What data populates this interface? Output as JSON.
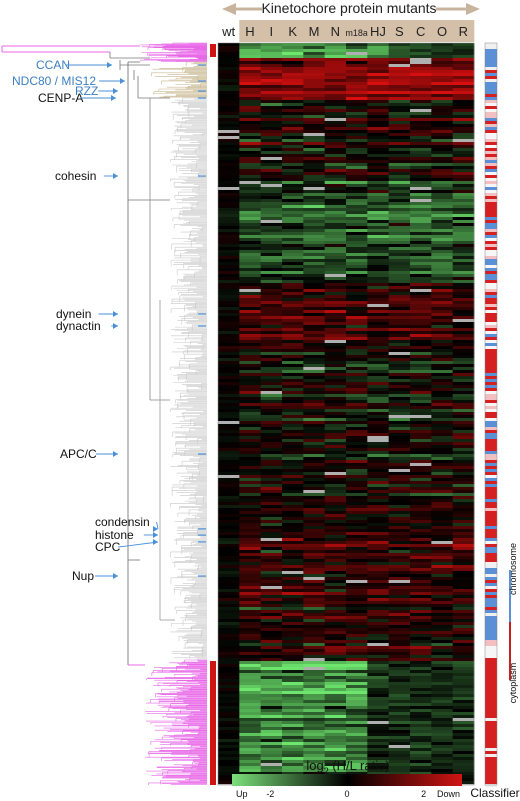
{
  "chart_data": {
    "type": "heatmap",
    "title": "Kinetochore protein mutants",
    "columns": [
      "wt",
      "H",
      "I",
      "K",
      "M",
      "N",
      "m18a",
      "HJ",
      "S",
      "C",
      "O",
      "R"
    ],
    "cluster_labels": [
      {
        "text": "CCAN",
        "color": "#3d7fc0"
      },
      {
        "text": "NDC80 / MIS12",
        "color": "#3d7fc0"
      },
      {
        "text": "RZZ",
        "color": "#3d7fc0"
      },
      {
        "text": "CENP-A",
        "color": "#111111"
      },
      {
        "text": "cohesin",
        "color": "#111111"
      },
      {
        "text": "dynein",
        "color": "#111111"
      },
      {
        "text": "dynactin",
        "color": "#111111"
      },
      {
        "text": "APC/C",
        "color": "#111111"
      },
      {
        "text": "condensin",
        "color": "#111111"
      },
      {
        "text": "histone",
        "color": "#111111"
      },
      {
        "text": "CPC",
        "color": "#111111"
      },
      {
        "text": "Nup",
        "color": "#111111"
      }
    ],
    "colorbar": {
      "title": "log2 (H/L ratio)",
      "title_main": "log",
      "title_sub": "2",
      "title_rest": " (H/L ratio)",
      "ticks": [
        "-2",
        "0",
        "2"
      ],
      "range": [
        -3,
        3
      ],
      "low_label": "Up",
      "high_label": "Down",
      "low_color": "#7be07b",
      "mid_color": "#000000",
      "high_color": "#d01414"
    },
    "classifier": {
      "title": "Classifier II",
      "classes": [
        "chromosome",
        "cytoplasm"
      ],
      "chromosome_color": "#5b8fd6",
      "cytoplasm_color": "#d42020"
    },
    "dendrogram": {
      "cluster_color": "#e868e8",
      "body_color": "#c8c8c8",
      "highlight_color": "#c8b890"
    }
  }
}
